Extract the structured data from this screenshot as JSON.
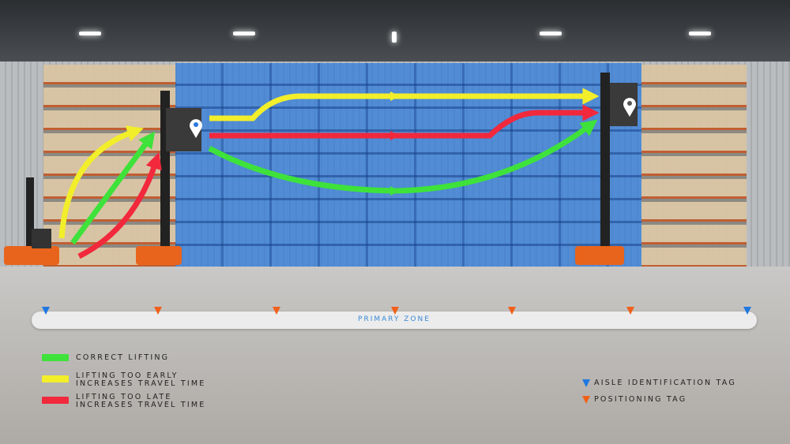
{
  "zone_label": "PRIMARY ZONE",
  "tags": {
    "sequence": [
      "aisle",
      "positioning",
      "positioning",
      "positioning",
      "positioning",
      "positioning",
      "aisle"
    ]
  },
  "legend": {
    "paths": [
      {
        "color": "#3ee23a",
        "line1": "CORRECT LIFTING",
        "line2": ""
      },
      {
        "color": "#f2ee2a",
        "line1": "LIFTING TOO EARLY",
        "line2": "INCREASES TRAVEL TIME"
      },
      {
        "color": "#f2283c",
        "line1": "LIFTING TOO LATE",
        "line2": "INCREASES TRAVEL TIME"
      }
    ],
    "tags": [
      {
        "color": "#1f78e0",
        "label": "AISLE IDENTIFICATION TAG"
      },
      {
        "color": "#f0601a",
        "label": "POSITIONING TAG"
      }
    ]
  },
  "colors": {
    "zone": "#2878dc",
    "green": "#3ee23a",
    "yellow": "#f2ee2a",
    "red": "#f2283c"
  }
}
